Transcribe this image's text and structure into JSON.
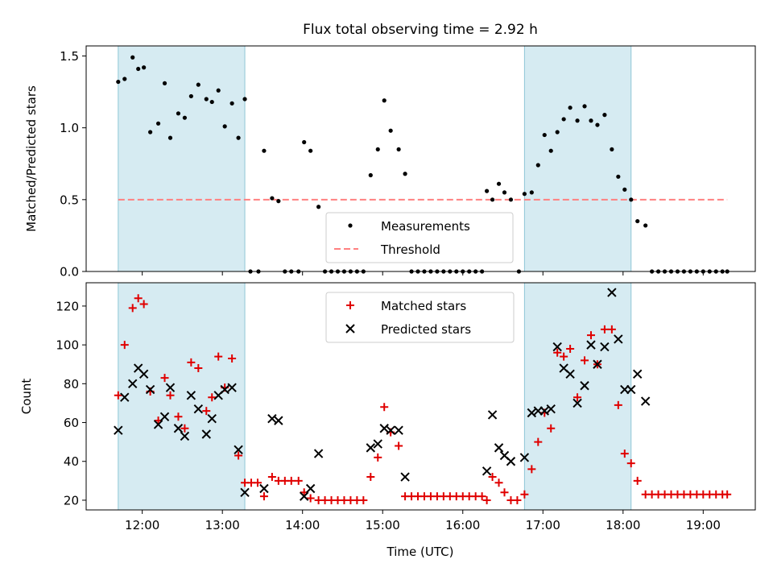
{
  "chart_data": [
    {
      "type": "scatter",
      "title": "Flux total observing time = 2.92 h",
      "xlabel": "",
      "ylabel": "Matched/Predicted stars",
      "xlim": [
        11.3,
        19.65
      ],
      "ylim": [
        0,
        1.57
      ],
      "yticks": [
        "0.0",
        "0.5",
        "1.0",
        "1.5"
      ],
      "shaded_intervals": [
        [
          11.7,
          13.28
        ],
        [
          16.77,
          18.1
        ]
      ],
      "threshold": {
        "name": "Threshold",
        "value": 0.5,
        "x": [
          11.7,
          19.3
        ],
        "color": "#ff8080"
      },
      "legend": {
        "placement": "lower-center",
        "entries": [
          "Measurements",
          "Threshold"
        ]
      },
      "series": [
        {
          "name": "Measurements",
          "marker": "dot",
          "color": "#000000",
          "points": [
            [
              11.7,
              1.32
            ],
            [
              11.78,
              1.34
            ],
            [
              11.88,
              1.49
            ],
            [
              11.95,
              1.41
            ],
            [
              12.02,
              1.42
            ],
            [
              12.1,
              0.97
            ],
            [
              12.2,
              1.03
            ],
            [
              12.28,
              1.31
            ],
            [
              12.35,
              0.93
            ],
            [
              12.45,
              1.1
            ],
            [
              12.53,
              1.07
            ],
            [
              12.61,
              1.22
            ],
            [
              12.7,
              1.3
            ],
            [
              12.8,
              1.2
            ],
            [
              12.87,
              1.18
            ],
            [
              12.95,
              1.26
            ],
            [
              13.03,
              1.01
            ],
            [
              13.12,
              1.17
            ],
            [
              13.2,
              0.93
            ],
            [
              13.28,
              1.2
            ],
            [
              13.35,
              0
            ],
            [
              13.45,
              0
            ],
            [
              13.52,
              0.84
            ],
            [
              13.62,
              0.51
            ],
            [
              13.7,
              0.49
            ],
            [
              13.78,
              0
            ],
            [
              13.86,
              0
            ],
            [
              13.95,
              0
            ],
            [
              14.02,
              0.9
            ],
            [
              14.1,
              0.84
            ],
            [
              14.2,
              0.45
            ],
            [
              14.28,
              0
            ],
            [
              14.36,
              0
            ],
            [
              14.44,
              0
            ],
            [
              14.52,
              0
            ],
            [
              14.6,
              0
            ],
            [
              14.68,
              0
            ],
            [
              14.76,
              0
            ],
            [
              14.85,
              0.67
            ],
            [
              14.94,
              0.85
            ],
            [
              15.02,
              1.19
            ],
            [
              15.1,
              0.98
            ],
            [
              15.2,
              0.85
            ],
            [
              15.28,
              0.68
            ],
            [
              15.36,
              0
            ],
            [
              15.44,
              0
            ],
            [
              15.52,
              0
            ],
            [
              15.6,
              0
            ],
            [
              15.68,
              0
            ],
            [
              15.76,
              0
            ],
            [
              15.84,
              0
            ],
            [
              15.92,
              0
            ],
            [
              16.0,
              0
            ],
            [
              16.08,
              0
            ],
            [
              16.16,
              0
            ],
            [
              16.24,
              0
            ],
            [
              16.3,
              0.56
            ],
            [
              16.37,
              0.5
            ],
            [
              16.45,
              0.61
            ],
            [
              16.52,
              0.55
            ],
            [
              16.6,
              0.5
            ],
            [
              16.7,
              0
            ],
            [
              16.77,
              0.54
            ],
            [
              16.86,
              0.55
            ],
            [
              16.94,
              0.74
            ],
            [
              17.02,
              0.95
            ],
            [
              17.1,
              0.84
            ],
            [
              17.18,
              0.97
            ],
            [
              17.26,
              1.06
            ],
            [
              17.34,
              1.14
            ],
            [
              17.43,
              1.05
            ],
            [
              17.52,
              1.15
            ],
            [
              17.6,
              1.05
            ],
            [
              17.68,
              1.02
            ],
            [
              17.77,
              1.09
            ],
            [
              17.86,
              0.85
            ],
            [
              17.94,
              0.66
            ],
            [
              18.02,
              0.57
            ],
            [
              18.1,
              0.5
            ],
            [
              18.18,
              0.35
            ],
            [
              18.28,
              0.32
            ],
            [
              18.36,
              0
            ],
            [
              18.44,
              0
            ],
            [
              18.52,
              0
            ],
            [
              18.6,
              0
            ],
            [
              18.68,
              0
            ],
            [
              18.76,
              0
            ],
            [
              18.84,
              0
            ],
            [
              18.92,
              0
            ],
            [
              19.0,
              0
            ],
            [
              19.08,
              0
            ],
            [
              19.16,
              0
            ],
            [
              19.24,
              0
            ],
            [
              19.3,
              0
            ]
          ]
        }
      ]
    },
    {
      "type": "scatter",
      "title": "",
      "xlabel": "Time (UTC)",
      "ylabel": "Count",
      "xlim": [
        11.3,
        19.65
      ],
      "ylim": [
        15,
        132
      ],
      "yticks": [
        "20",
        "40",
        "60",
        "80",
        "100",
        "120"
      ],
      "xticks": [
        "12:00",
        "13:00",
        "14:00",
        "15:00",
        "16:00",
        "17:00",
        "18:00",
        "19:00"
      ],
      "shaded_intervals": [
        [
          11.7,
          13.28
        ],
        [
          16.77,
          18.1
        ]
      ],
      "legend": {
        "placement": "upper-center",
        "entries": [
          "Matched stars",
          "Predicted stars"
        ]
      },
      "series": [
        {
          "name": "Matched stars",
          "marker": "plus",
          "color": "#e00000",
          "points": [
            [
              11.7,
              74
            ],
            [
              11.78,
              100
            ],
            [
              11.88,
              119
            ],
            [
              11.95,
              124
            ],
            [
              12.02,
              121
            ],
            [
              12.1,
              76
            ],
            [
              12.2,
              61
            ],
            [
              12.28,
              83
            ],
            [
              12.35,
              74
            ],
            [
              12.45,
              63
            ],
            [
              12.53,
              57
            ],
            [
              12.61,
              91
            ],
            [
              12.7,
              88
            ],
            [
              12.8,
              66
            ],
            [
              12.87,
              73
            ],
            [
              12.95,
              94
            ],
            [
              13.03,
              78
            ],
            [
              13.12,
              93
            ],
            [
              13.2,
              43
            ],
            [
              13.28,
              29
            ],
            [
              13.36,
              29
            ],
            [
              13.44,
              29
            ],
            [
              13.52,
              22
            ],
            [
              13.62,
              32
            ],
            [
              13.7,
              30
            ],
            [
              13.78,
              30
            ],
            [
              13.86,
              30
            ],
            [
              13.95,
              30
            ],
            [
              14.02,
              24
            ],
            [
              14.1,
              21
            ],
            [
              14.2,
              20
            ],
            [
              14.28,
              20
            ],
            [
              14.36,
              20
            ],
            [
              14.44,
              20
            ],
            [
              14.52,
              20
            ],
            [
              14.6,
              20
            ],
            [
              14.68,
              20
            ],
            [
              14.76,
              20
            ],
            [
              14.85,
              32
            ],
            [
              14.94,
              42
            ],
            [
              15.02,
              68
            ],
            [
              15.1,
              55
            ],
            [
              15.2,
              48
            ],
            [
              15.28,
              22
            ],
            [
              15.36,
              22
            ],
            [
              15.44,
              22
            ],
            [
              15.52,
              22
            ],
            [
              15.6,
              22
            ],
            [
              15.68,
              22
            ],
            [
              15.76,
              22
            ],
            [
              15.84,
              22
            ],
            [
              15.92,
              22
            ],
            [
              16.0,
              22
            ],
            [
              16.08,
              22
            ],
            [
              16.16,
              22
            ],
            [
              16.24,
              22
            ],
            [
              16.3,
              20
            ],
            [
              16.37,
              32
            ],
            [
              16.45,
              29
            ],
            [
              16.52,
              24
            ],
            [
              16.6,
              20
            ],
            [
              16.68,
              20
            ],
            [
              16.77,
              23
            ],
            [
              16.86,
              36
            ],
            [
              16.94,
              50
            ],
            [
              17.02,
              65
            ],
            [
              17.1,
              57
            ],
            [
              17.18,
              96
            ],
            [
              17.26,
              94
            ],
            [
              17.34,
              98
            ],
            [
              17.43,
              73
            ],
            [
              17.52,
              92
            ],
            [
              17.6,
              105
            ],
            [
              17.68,
              90
            ],
            [
              17.77,
              108
            ],
            [
              17.86,
              108
            ],
            [
              17.94,
              69
            ],
            [
              18.02,
              44
            ],
            [
              18.1,
              39
            ],
            [
              18.18,
              30
            ],
            [
              18.28,
              23
            ],
            [
              18.36,
              23
            ],
            [
              18.44,
              23
            ],
            [
              18.52,
              23
            ],
            [
              18.6,
              23
            ],
            [
              18.68,
              23
            ],
            [
              18.76,
              23
            ],
            [
              18.84,
              23
            ],
            [
              18.92,
              23
            ],
            [
              19.0,
              23
            ],
            [
              19.08,
              23
            ],
            [
              19.16,
              23
            ],
            [
              19.24,
              23
            ],
            [
              19.3,
              23
            ]
          ]
        },
        {
          "name": "Predicted stars",
          "marker": "x",
          "color": "#000000",
          "points": [
            [
              11.7,
              56
            ],
            [
              11.78,
              73
            ],
            [
              11.88,
              80
            ],
            [
              11.95,
              88
            ],
            [
              12.02,
              85
            ],
            [
              12.1,
              77
            ],
            [
              12.2,
              59
            ],
            [
              12.28,
              63
            ],
            [
              12.35,
              78
            ],
            [
              12.45,
              57
            ],
            [
              12.53,
              53
            ],
            [
              12.61,
              74
            ],
            [
              12.7,
              67
            ],
            [
              12.8,
              54
            ],
            [
              12.87,
              62
            ],
            [
              12.95,
              74
            ],
            [
              13.03,
              77
            ],
            [
              13.12,
              78
            ],
            [
              13.2,
              46
            ],
            [
              13.28,
              24
            ],
            [
              13.52,
              26
            ],
            [
              13.62,
              62
            ],
            [
              13.7,
              61
            ],
            [
              14.02,
              22
            ],
            [
              14.1,
              26
            ],
            [
              14.2,
              44
            ],
            [
              14.85,
              47
            ],
            [
              14.94,
              49
            ],
            [
              15.02,
              57
            ],
            [
              15.1,
              56
            ],
            [
              15.2,
              56
            ],
            [
              15.28,
              32
            ],
            [
              16.3,
              35
            ],
            [
              16.37,
              64
            ],
            [
              16.45,
              47
            ],
            [
              16.52,
              43
            ],
            [
              16.6,
              40
            ],
            [
              16.77,
              42
            ],
            [
              16.86,
              65
            ],
            [
              16.94,
              66
            ],
            [
              17.02,
              66
            ],
            [
              17.1,
              67
            ],
            [
              17.18,
              99
            ],
            [
              17.26,
              88
            ],
            [
              17.34,
              85
            ],
            [
              17.43,
              70
            ],
            [
              17.52,
              79
            ],
            [
              17.6,
              100
            ],
            [
              17.68,
              90
            ],
            [
              17.77,
              99
            ],
            [
              17.86,
              127
            ],
            [
              17.94,
              103
            ],
            [
              18.02,
              77
            ],
            [
              18.1,
              77
            ],
            [
              18.18,
              85
            ],
            [
              18.28,
              71
            ]
          ]
        }
      ]
    }
  ]
}
